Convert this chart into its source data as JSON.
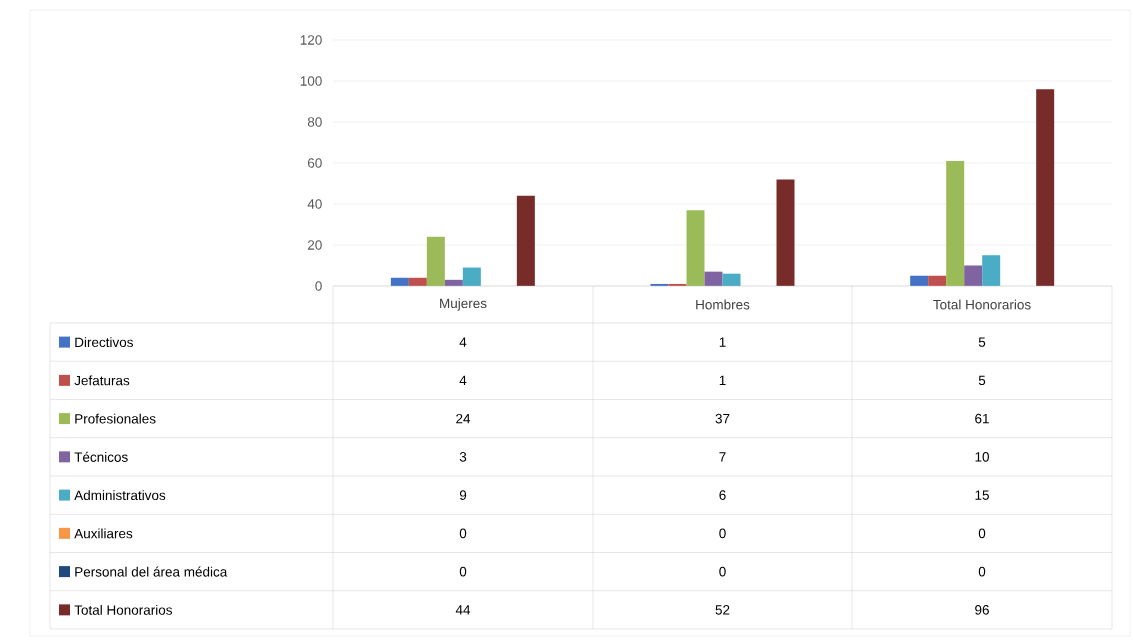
{
  "chart_data": {
    "type": "bar",
    "categories": [
      "Mujeres",
      "Hombres",
      "Total Honorarios"
    ],
    "series": [
      {
        "name": "Directivos",
        "color": "#4472c4",
        "values": [
          4,
          1,
          5
        ]
      },
      {
        "name": "Jefaturas",
        "color": "#c0504d",
        "values": [
          4,
          1,
          5
        ]
      },
      {
        "name": "Profesionales",
        "color": "#9bbb59",
        "values": [
          24,
          37,
          61
        ]
      },
      {
        "name": "Técnicos",
        "color": "#8064a2",
        "values": [
          3,
          7,
          10
        ]
      },
      {
        "name": "Administrativos",
        "color": "#4bacc6",
        "values": [
          9,
          6,
          15
        ]
      },
      {
        "name": "Auxiliares",
        "color": "#f79646",
        "values": [
          0,
          0,
          0
        ]
      },
      {
        "name": "Personal del área médica",
        "color": "#1f497d",
        "values": [
          0,
          0,
          0
        ]
      },
      {
        "name": "Total Honorarios",
        "color": "#772c2a",
        "values": [
          44,
          52,
          96
        ]
      }
    ],
    "ylim": [
      0,
      120
    ],
    "yticks": [
      0,
      20,
      40,
      60,
      80,
      100,
      120
    ],
    "grid": "y",
    "legend": "bottom",
    "data_labels": true
  }
}
